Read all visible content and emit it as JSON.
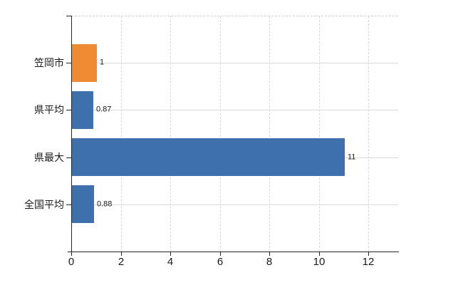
{
  "chart_data": {
    "type": "bar",
    "orientation": "horizontal",
    "title": "",
    "xlabel": "",
    "ylabel": "",
    "categories": [
      "笠岡市",
      "県平均",
      "県最大",
      "全国平均"
    ],
    "values": [
      1,
      0.87,
      11,
      0.88
    ],
    "value_labels": [
      "1",
      "0.87",
      "11",
      "0.88"
    ],
    "series": [
      {
        "name": "value",
        "values": [
          1,
          0.87,
          11,
          0.88
        ]
      }
    ],
    "bar_colors": [
      "#ee8b33",
      "#3f70ae",
      "#3f70ae",
      "#3f70ae"
    ],
    "highlighted_category": "笠岡市",
    "x_ticks": [
      0,
      2,
      4,
      6,
      8,
      10,
      12
    ],
    "xlim": [
      0,
      13.2
    ],
    "grid": true,
    "legend_position": "none"
  },
  "colors": {
    "highlight_bar": "#ee8b33",
    "default_bar": "#3f70ae",
    "axis": "#262626",
    "grid_line": "#d9d9d9",
    "plot_border": "#cfcfcf",
    "text": "#1a1a1a",
    "background": "#ffffff"
  }
}
